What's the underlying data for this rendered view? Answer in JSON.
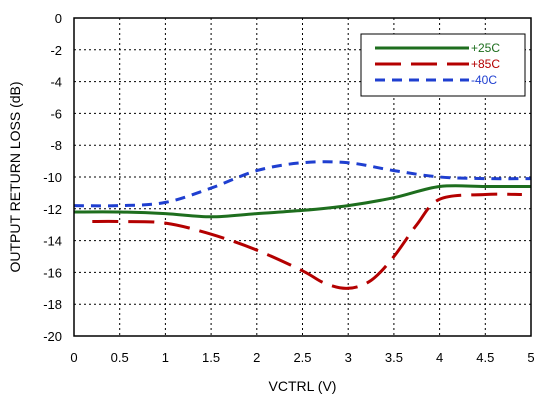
{
  "chart_data": {
    "type": "line",
    "title": "",
    "xlabel": "VCTRL (V)",
    "ylabel": "OUTPUT RETURN LOSS (dB)",
    "xlim": [
      0,
      5
    ],
    "ylim": [
      -20,
      0
    ],
    "xticks": [
      0,
      0.5,
      1,
      1.5,
      2,
      2.5,
      3,
      3.5,
      4,
      4.5,
      5
    ],
    "xtick_labels": [
      "0",
      "0.5",
      "1",
      "1.5",
      "2",
      "2.5",
      "3",
      "3.5",
      "4",
      "4.5",
      "5"
    ],
    "yticks": [
      0,
      -2,
      -4,
      -6,
      -8,
      -10,
      -12,
      -14,
      -16,
      -18,
      -20
    ],
    "ytick_labels": [
      "0",
      "-2",
      "-4",
      "-6",
      "-8",
      "-10",
      "-12",
      "-14",
      "-16",
      "-18",
      "-20"
    ],
    "grid": true,
    "legend_position": "top-right",
    "series": [
      {
        "name": "+25C",
        "color": "#1e6e1e",
        "dash": "solid",
        "x": [
          0,
          0.5,
          1,
          1.5,
          2,
          2.5,
          3,
          3.5,
          4,
          4.5,
          5
        ],
        "y": [
          -12.2,
          -12.2,
          -12.3,
          -12.5,
          -12.3,
          -12.1,
          -11.8,
          -11.3,
          -10.6,
          -10.6,
          -10.6
        ]
      },
      {
        "name": "+85C",
        "color": "#b40000",
        "dash": "long-dash",
        "x": [
          0.2,
          0.5,
          1,
          1.5,
          2,
          2.5,
          2.75,
          3,
          3.25,
          3.5,
          3.75,
          4,
          4.5,
          4.9
        ],
        "y": [
          -12.8,
          -12.8,
          -12.9,
          -13.6,
          -14.6,
          -15.9,
          -16.7,
          -17.0,
          -16.5,
          -15.0,
          -13.0,
          -11.4,
          -11.1,
          -11.1
        ]
      },
      {
        "name": "-40C",
        "color": "#1f3fd0",
        "dash": "short-dash",
        "x": [
          0,
          0.5,
          1,
          1.5,
          2,
          2.5,
          3,
          3.5,
          4,
          4.5,
          5
        ],
        "y": [
          -11.8,
          -11.8,
          -11.6,
          -10.7,
          -9.6,
          -9.1,
          -9.1,
          -9.6,
          -10.0,
          -10.1,
          -10.1
        ]
      }
    ]
  }
}
